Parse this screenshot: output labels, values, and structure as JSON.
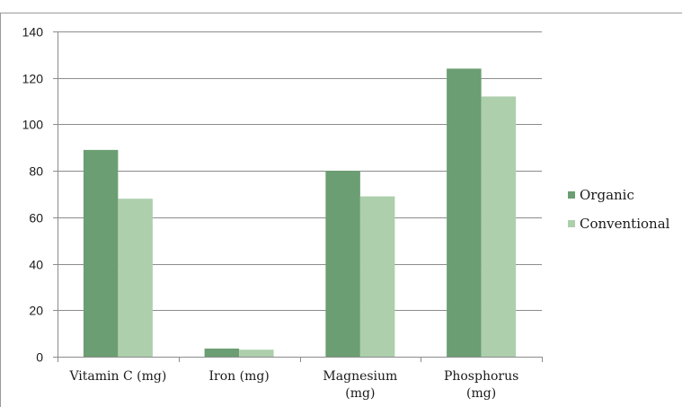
{
  "chart_data": {
    "type": "bar",
    "title": "",
    "xlabel": "",
    "ylabel": "",
    "categories": [
      [
        "Vitamin C (mg)"
      ],
      [
        "Iron (mg)"
      ],
      [
        "Magnesium",
        "(mg)"
      ],
      [
        "Phosphorus",
        "(mg)"
      ]
    ],
    "series": [
      {
        "name": "Organic",
        "color": "#6b9e72",
        "values": [
          89,
          3.5,
          80,
          124
        ]
      },
      {
        "name": "Conventional",
        "color": "#adcfac",
        "values": [
          68,
          3,
          69,
          112
        ]
      }
    ],
    "ylim": [
      0,
      140
    ],
    "yticks": [
      0,
      20,
      40,
      60,
      80,
      100,
      120,
      140
    ],
    "grid": true,
    "legend_position": "right"
  }
}
